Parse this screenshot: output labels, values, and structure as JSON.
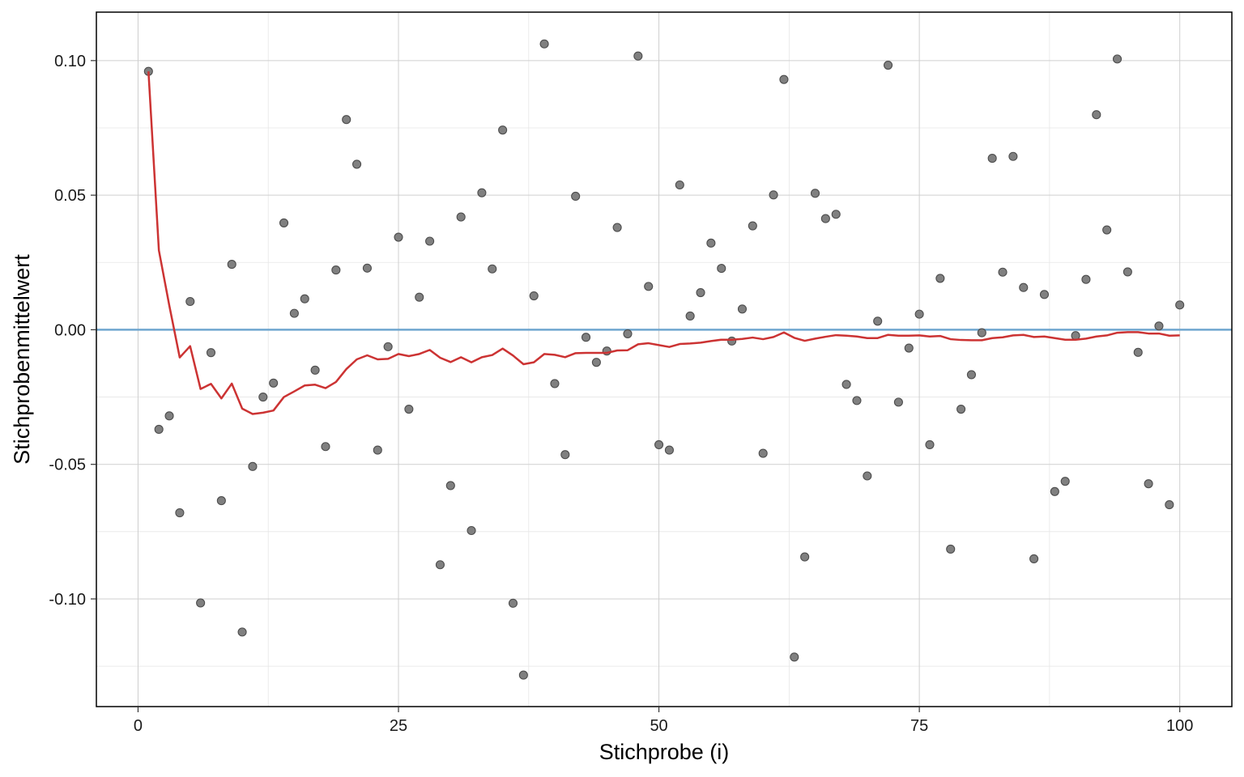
{
  "chart_data": {
    "type": "scatter",
    "title": "",
    "xlabel": "Stichprobe (i)",
    "ylabel": "Stichprobenmittelwert",
    "xlim": [
      -4,
      105
    ],
    "ylim": [
      -0.14,
      0.118
    ],
    "x_ticks": [
      0,
      25,
      50,
      75,
      100
    ],
    "x_tick_labels": [
      "0",
      "25",
      "50",
      "75",
      "100"
    ],
    "y_ticks": [
      0.1,
      0.05,
      0.0,
      -0.05,
      -0.1
    ],
    "y_tick_labels": [
      "0.10",
      "0.05",
      "0.00",
      "-0.05",
      "-0.10"
    ],
    "grid": true,
    "reference_line": {
      "y": 0.0,
      "color": "#6fa6cf"
    },
    "series": [
      {
        "kind": "points",
        "color": "#808080",
        "x": [
          1,
          2,
          3,
          4,
          5,
          6,
          7,
          8,
          9,
          10,
          11,
          12,
          13,
          14,
          15,
          16,
          17,
          18,
          19,
          20,
          21,
          22,
          23,
          24,
          25,
          26,
          27,
          28,
          29,
          30,
          31,
          32,
          33,
          34,
          35,
          36,
          37,
          38,
          39,
          40,
          41,
          42,
          43,
          44,
          45,
          46,
          47,
          48,
          49,
          50,
          51,
          52,
          53,
          54,
          55,
          56,
          57,
          58,
          59,
          60,
          61,
          62,
          63,
          64,
          65,
          66,
          67,
          68,
          69,
          70,
          71,
          72,
          73,
          74,
          75,
          76,
          77,
          78,
          79,
          80,
          81,
          82,
          83,
          84,
          85,
          86,
          87,
          88,
          89,
          90,
          91,
          92,
          93,
          94,
          95,
          96,
          97,
          98,
          99,
          100
        ],
        "y": [
          0.096,
          -0.037,
          -0.032,
          -0.068,
          0.0105,
          -0.1015,
          -0.0085,
          -0.0635,
          0.0243,
          -0.1123,
          -0.0508,
          -0.025,
          -0.0198,
          0.0397,
          0.0061,
          0.0115,
          -0.015,
          -0.0434,
          0.0222,
          0.0781,
          0.0615,
          0.0229,
          -0.0447,
          -0.0063,
          0.0344,
          -0.0295,
          0.0121,
          0.0329,
          -0.0873,
          -0.0579,
          0.0419,
          -0.0746,
          0.0509,
          0.0226,
          0.0742,
          -0.1016,
          -0.1283,
          0.0126,
          0.1062,
          -0.02,
          -0.0464,
          0.0496,
          -0.0028,
          -0.0121,
          -0.0079,
          0.038,
          -0.0015,
          0.1017,
          0.0161,
          -0.0427,
          -0.0447,
          0.0538,
          0.0051,
          0.0138,
          0.0322,
          0.0228,
          -0.0042,
          0.0077,
          0.0386,
          -0.0459,
          0.0501,
          0.093,
          -0.1216,
          -0.0844,
          0.0507,
          0.0413,
          0.0429,
          -0.0203,
          -0.0263,
          -0.0543,
          0.0032,
          0.0983,
          -0.0269,
          -0.0068,
          0.0058,
          -0.0427,
          0.0191,
          -0.0815,
          -0.0295,
          -0.0167,
          -0.0011,
          0.0637,
          0.0214,
          0.0644,
          0.0157,
          -0.0851,
          0.0131,
          -0.0601,
          -0.0563,
          -0.0022,
          0.0187,
          0.0799,
          0.0371,
          0.1006,
          0.0215,
          -0.0084,
          -0.0572,
          0.0014,
          -0.065,
          0.0092
        ]
      },
      {
        "kind": "line",
        "color": "#cc3333",
        "x": [
          1,
          2,
          3,
          4,
          5,
          6,
          7,
          8,
          9,
          10,
          11,
          12,
          13,
          14,
          15,
          16,
          17,
          18,
          19,
          20,
          21,
          22,
          23,
          24,
          25,
          26,
          27,
          28,
          29,
          30,
          31,
          32,
          33,
          34,
          35,
          36,
          37,
          38,
          39,
          40,
          41,
          42,
          43,
          44,
          45,
          46,
          47,
          48,
          49,
          50,
          51,
          52,
          53,
          54,
          55,
          56,
          57,
          58,
          59,
          60,
          61,
          62,
          63,
          64,
          65,
          66,
          67,
          68,
          69,
          70,
          71,
          72,
          73,
          74,
          75,
          76,
          77,
          78,
          79,
          80,
          81,
          82,
          83,
          84,
          85,
          86,
          87,
          88,
          89,
          90,
          91,
          92,
          93,
          94,
          95,
          96,
          97,
          98,
          99,
          100
        ],
        "y": [
          0.096,
          0.0295,
          0.009,
          -0.0103,
          -0.0061,
          -0.022,
          -0.0201,
          -0.0255,
          -0.02,
          -0.0293,
          -0.0313,
          -0.0308,
          -0.03,
          -0.025,
          -0.0229,
          -0.0207,
          -0.0204,
          -0.0217,
          -0.0194,
          -0.0146,
          -0.011,
          -0.0095,
          -0.011,
          -0.0108,
          -0.009,
          -0.0098,
          -0.009,
          -0.0075,
          -0.0104,
          -0.012,
          -0.0102,
          -0.0121,
          -0.0102,
          -0.0094,
          -0.007,
          -0.0096,
          -0.0128,
          -0.0121,
          -0.009,
          -0.0093,
          -0.0102,
          -0.0087,
          -0.0086,
          -0.0086,
          -0.0086,
          -0.0077,
          -0.0076,
          -0.0054,
          -0.005,
          -0.0057,
          -0.0064,
          -0.0053,
          -0.0051,
          -0.0048,
          -0.0042,
          -0.0037,
          -0.0037,
          -0.0034,
          -0.0029,
          -0.0035,
          -0.0027,
          -0.001,
          -0.003,
          -0.0041,
          -0.0033,
          -0.0026,
          -0.002,
          -0.0022,
          -0.0025,
          -0.0031,
          -0.0031,
          -0.0019,
          -0.0022,
          -0.0022,
          -0.0021,
          -0.0025,
          -0.0023,
          -0.0035,
          -0.0038,
          -0.0039,
          -0.0039,
          -0.0031,
          -0.0028,
          -0.0021,
          -0.0019,
          -0.0027,
          -0.0025,
          -0.0031,
          -0.0037,
          -0.0037,
          -0.0033,
          -0.0025,
          -0.0021,
          -0.0011,
          -0.0009,
          -0.0009,
          -0.0014,
          -0.0014,
          -0.0022,
          -0.0021
        ]
      }
    ]
  }
}
